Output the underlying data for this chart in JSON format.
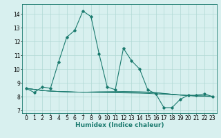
{
  "x": [
    0,
    1,
    2,
    3,
    4,
    5,
    6,
    7,
    8,
    9,
    10,
    11,
    12,
    13,
    14,
    15,
    16,
    17,
    18,
    19,
    20,
    21,
    22,
    23
  ],
  "y_main": [
    8.6,
    8.3,
    8.7,
    8.6,
    10.5,
    12.3,
    12.8,
    14.2,
    13.8,
    11.1,
    8.7,
    8.5,
    11.5,
    10.6,
    10.0,
    8.5,
    8.2,
    7.2,
    7.2,
    7.8,
    8.1,
    8.1,
    8.2,
    8.0
  ],
  "y_trend1": [
    8.6,
    8.52,
    8.44,
    8.4,
    8.37,
    8.35,
    8.33,
    8.32,
    8.31,
    8.3,
    8.29,
    8.28,
    8.27,
    8.26,
    8.25,
    8.23,
    8.2,
    8.17,
    8.14,
    8.11,
    8.08,
    8.05,
    8.03,
    8.0
  ],
  "y_trend2": [
    8.6,
    8.52,
    8.44,
    8.4,
    8.37,
    8.35,
    8.33,
    8.32,
    8.33,
    8.34,
    8.34,
    8.34,
    8.34,
    8.33,
    8.32,
    8.3,
    8.27,
    8.22,
    8.17,
    8.12,
    8.08,
    8.05,
    8.04,
    8.02
  ],
  "y_trend3": [
    8.6,
    8.52,
    8.44,
    8.4,
    8.37,
    8.35,
    8.33,
    8.32,
    8.33,
    8.34,
    8.35,
    8.36,
    8.37,
    8.36,
    8.35,
    8.33,
    8.29,
    8.23,
    8.17,
    8.12,
    8.08,
    8.05,
    8.05,
    8.03
  ],
  "line_color": "#1a7a6e",
  "bg_color": "#d8f0ef",
  "grid_color": "#b0d8d4",
  "xlabel": "Humidex (Indice chaleur)",
  "xlim": [
    -0.5,
    23.5
  ],
  "ylim": [
    6.8,
    14.7
  ],
  "yticks": [
    7,
    8,
    9,
    10,
    11,
    12,
    13,
    14
  ],
  "xticks": [
    0,
    1,
    2,
    3,
    4,
    5,
    6,
    7,
    8,
    9,
    10,
    11,
    12,
    13,
    14,
    15,
    16,
    17,
    18,
    19,
    20,
    21,
    22,
    23
  ],
  "tick_fontsize": 5.5,
  "label_fontsize": 6.5
}
